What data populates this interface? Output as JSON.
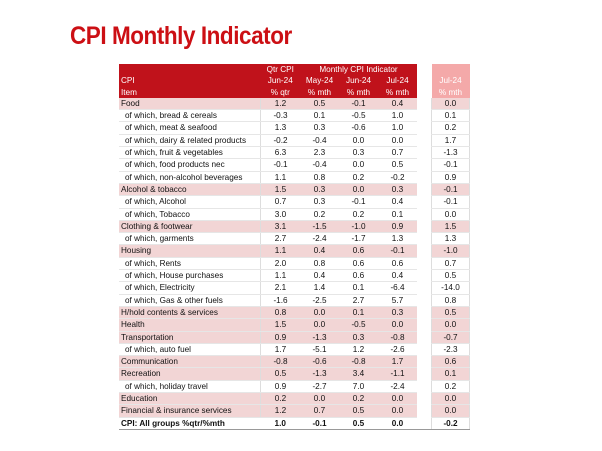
{
  "title": "CPI Monthly Indicator",
  "header": {
    "row1": [
      "",
      "Qtr CPI",
      "Monthly CPI Indicator",
      "",
      "",
      ""
    ],
    "row2": [
      "CPI",
      "Jun-24",
      "May-24",
      "Jun-24",
      "Jul-24",
      "Jul-24"
    ],
    "row3": [
      "Item",
      "% qtr",
      "% mth",
      "% mth",
      "% mth",
      "% mth"
    ]
  },
  "rows": [
    {
      "label": "Food",
      "type": "main",
      "v": [
        "1.2",
        "0.5",
        "-0.1",
        "0.4",
        "0.0"
      ]
    },
    {
      "label": "of which, bread & cereals",
      "type": "sub",
      "v": [
        "-0.3",
        "0.1",
        "-0.5",
        "1.0",
        "0.1"
      ]
    },
    {
      "label": "of which, meat & seafood",
      "type": "sub",
      "v": [
        "1.3",
        "0.3",
        "-0.6",
        "1.0",
        "0.2"
      ]
    },
    {
      "label": "of which, dairy & related products",
      "type": "sub",
      "v": [
        "-0.2",
        "-0.4",
        "0.0",
        "0.0",
        "1.7"
      ]
    },
    {
      "label": "of which, fruit & vegetables",
      "type": "sub",
      "v": [
        "6.3",
        "2.3",
        "0.3",
        "0.7",
        "-1.3"
      ]
    },
    {
      "label": "of which, food products nec",
      "type": "sub",
      "v": [
        "-0.1",
        "-0.4",
        "0.0",
        "0.5",
        "-0.1"
      ]
    },
    {
      "label": "of which, non-alcohol beverages",
      "type": "sub",
      "v": [
        "1.1",
        "0.8",
        "0.2",
        "-0.2",
        "0.9"
      ]
    },
    {
      "label": "Alcohol & tobacco",
      "type": "main",
      "v": [
        "1.5",
        "0.3",
        "0.0",
        "0.3",
        "-0.1"
      ]
    },
    {
      "label": "of which, Alcohol",
      "type": "sub",
      "v": [
        "0.7",
        "0.3",
        "-0.1",
        "0.4",
        "-0.1"
      ]
    },
    {
      "label": "of which, Tobacco",
      "type": "sub",
      "v": [
        "3.0",
        "0.2",
        "0.2",
        "0.1",
        "0.0"
      ]
    },
    {
      "label": "Clothing & footwear",
      "type": "main",
      "v": [
        "3.1",
        "-1.5",
        "-1.0",
        "0.9",
        "1.5"
      ]
    },
    {
      "label": "of which, garments",
      "type": "sub",
      "v": [
        "2.7",
        "-2.4",
        "-1.7",
        "1.3",
        "1.3"
      ]
    },
    {
      "label": "Housing",
      "type": "main",
      "v": [
        "1.1",
        "0.4",
        "0.6",
        "-0.1",
        "-1.0"
      ]
    },
    {
      "label": "of which, Rents",
      "type": "sub",
      "v": [
        "2.0",
        "0.8",
        "0.6",
        "0.6",
        "0.7"
      ]
    },
    {
      "label": "of which, House purchases",
      "type": "sub",
      "v": [
        "1.1",
        "0.4",
        "0.6",
        "0.4",
        "0.5"
      ]
    },
    {
      "label": "of which, Electricity",
      "type": "sub",
      "v": [
        "2.1",
        "1.4",
        "0.1",
        "-6.4",
        "-14.0"
      ]
    },
    {
      "label": "of which, Gas & other fuels",
      "type": "sub",
      "v": [
        "-1.6",
        "-2.5",
        "2.7",
        "5.7",
        "0.8"
      ]
    },
    {
      "label": "H/hold contents & services",
      "type": "main",
      "v": [
        "0.8",
        "0.0",
        "0.1",
        "0.3",
        "0.5"
      ]
    },
    {
      "label": "Health",
      "type": "main",
      "v": [
        "1.5",
        "0.0",
        "-0.5",
        "0.0",
        "0.0"
      ]
    },
    {
      "label": "Transportation",
      "type": "main",
      "v": [
        "0.9",
        "-1.3",
        "0.3",
        "-0.8",
        "-0.7"
      ]
    },
    {
      "label": "of which, auto fuel",
      "type": "sub",
      "v": [
        "1.7",
        "-5.1",
        "1.2",
        "-2.6",
        "-2.3"
      ]
    },
    {
      "label": "Communication",
      "type": "main",
      "v": [
        "-0.8",
        "-0.6",
        "-0.8",
        "1.7",
        "0.6"
      ]
    },
    {
      "label": "Recreation",
      "type": "main",
      "v": [
        "0.5",
        "-1.3",
        "3.4",
        "-1.1",
        "0.1"
      ]
    },
    {
      "label": "of which, holiday travel",
      "type": "sub",
      "v": [
        "0.9",
        "-2.7",
        "7.0",
        "-2.4",
        "0.2"
      ]
    },
    {
      "label": "Education",
      "type": "main",
      "v": [
        "0.2",
        "0.0",
        "0.2",
        "0.0",
        "0.0"
      ]
    },
    {
      "label": "Financial & insurance services",
      "type": "main",
      "v": [
        "1.2",
        "0.7",
        "0.5",
        "0.0",
        "0.0"
      ]
    },
    {
      "label": "CPI: All groups %qtr/%mth",
      "type": "total",
      "v": [
        "1.0",
        "-0.1",
        "0.5",
        "0.0",
        "-0.2"
      ]
    }
  ],
  "colors": {
    "accent": "#c0121b",
    "title": "#cc0f14",
    "main_row": "#f2d5d5",
    "highlight_col": "#f4a9a9"
  }
}
